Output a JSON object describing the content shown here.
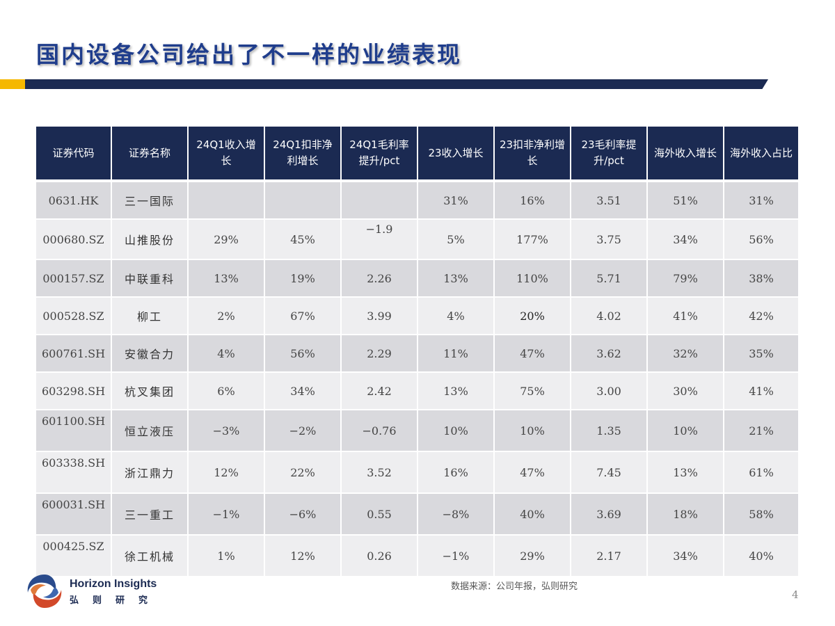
{
  "slide": {
    "title": "国内设备公司给出了不一样的业绩表现",
    "source": "数据来源：公司年报，弘则研究",
    "page_number": "4",
    "brand_en": "Horizon Insights",
    "brand_cn": "弘则研究"
  },
  "colors": {
    "title": "#1f3d8c",
    "header_bg": "#1b2a52",
    "accent": "#f5b800",
    "row_odd": "#d9d9dd",
    "row_even": "#eeeef0"
  },
  "table": {
    "headers": [
      "证券代码",
      "证券名称",
      "24Q1收入增长",
      "24Q1扣非净利增长",
      "24Q1毛利率提升/pct",
      "23收入增长",
      "23扣非净利增长",
      "23毛利率提升/pct",
      "海外收入增长",
      "海外收入占比"
    ],
    "rows": [
      [
        "0631.HK",
        "三一国际",
        "",
        "",
        "",
        "31%",
        "16%",
        "3.51",
        "51%",
        "31%"
      ],
      [
        "000680.SZ",
        "山推股份",
        "29%",
        "45%",
        "−1.9",
        "5%",
        "177%",
        "3.75",
        "34%",
        "56%"
      ],
      [
        "000157.SZ",
        "中联重科",
        "13%",
        "19%",
        "2.26",
        "13%",
        "110%",
        "5.71",
        "79%",
        "38%"
      ],
      [
        "000528.SZ",
        "柳工",
        "2%",
        "67%",
        "3.99",
        "4%",
        "20%",
        "4.02",
        "41%",
        "42%"
      ],
      [
        "600761.SH",
        "安徽合力",
        "4%",
        "56%",
        "2.29",
        "11%",
        "47%",
        "3.62",
        "32%",
        "35%"
      ],
      [
        "603298.SH",
        "杭叉集团",
        "6%",
        "34%",
        "2.42",
        "13%",
        "75%",
        "3.00",
        "30%",
        "41%"
      ],
      [
        "601100.SH",
        "恒立液压",
        "−3%",
        "−2%",
        "−0.76",
        "10%",
        "10%",
        "1.35",
        "10%",
        "21%"
      ],
      [
        "603338.SH",
        "浙江鼎力",
        "12%",
        "22%",
        "3.52",
        "16%",
        "47%",
        "7.45",
        "13%",
        "61%"
      ],
      [
        "600031.SH",
        "三一重工",
        "−1%",
        "−6%",
        "0.55",
        "−8%",
        "40%",
        "3.69",
        "18%",
        "58%"
      ],
      [
        "000425.SZ",
        "徐工机械",
        "1%",
        "12%",
        "0.26",
        "−1%",
        "29%",
        "2.17",
        "34%",
        "40%"
      ]
    ]
  }
}
